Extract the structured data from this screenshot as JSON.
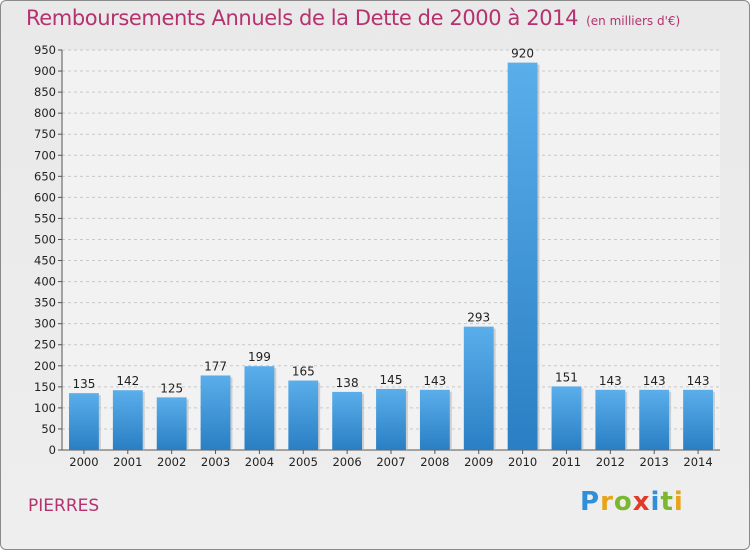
{
  "chart_data": {
    "type": "bar",
    "title": "Remboursements Annuels de la Dette de 2000 à 2014",
    "subtitle": "(en milliers d'€)",
    "categories": [
      "2000",
      "2001",
      "2002",
      "2003",
      "2004",
      "2005",
      "2006",
      "2007",
      "2008",
      "2009",
      "2010",
      "2011",
      "2012",
      "2013",
      "2014"
    ],
    "values": [
      135,
      142,
      125,
      177,
      199,
      165,
      138,
      145,
      143,
      293,
      920,
      151,
      143,
      143,
      143
    ],
    "ylim": [
      0,
      950
    ],
    "ytick_step": 50,
    "grid": true,
    "bar_color": "#3c95dc",
    "title_color": "#b5316f"
  },
  "location": "PIERRES",
  "brand": {
    "letters": [
      {
        "ch": "P",
        "color": "#2f8fd8"
      },
      {
        "ch": "r",
        "color": "#e8a317"
      },
      {
        "ch": "o",
        "color": "#7cb82f"
      },
      {
        "ch": "x",
        "color": "#e23a2a"
      },
      {
        "ch": "i",
        "color": "#2f8fd8"
      },
      {
        "ch": "t",
        "color": "#7cb82f"
      },
      {
        "ch": "i",
        "color": "#e8a317"
      }
    ]
  }
}
